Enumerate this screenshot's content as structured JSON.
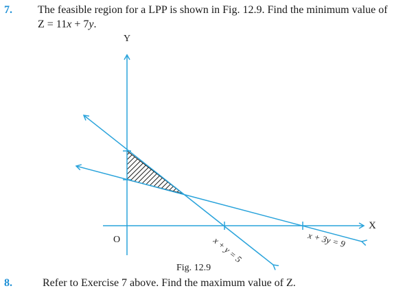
{
  "question7": {
    "number": "7.",
    "line1": "The feasible region for a LPP is shown in Fig. 12.9. Find the minimum value of",
    "line2_prefix": "Z = 11",
    "line2_x": "x",
    "line2_mid": " + 7",
    "line2_y": "y",
    "line2_suffix": "."
  },
  "figure": {
    "y_axis_label": "Y",
    "x_axis_label": "X",
    "origin_label": "O",
    "line1_label": "x + y = 5",
    "line2_label": "x + 3y = 9",
    "caption": "Fig. 12.9"
  },
  "question8": {
    "number": "8.",
    "text": "Refer to Exercise 7 above. Find the maximum value of Z."
  },
  "colors": {
    "accent": "#1e90d6",
    "line": "#29a3db",
    "text": "#1a1a1a"
  }
}
